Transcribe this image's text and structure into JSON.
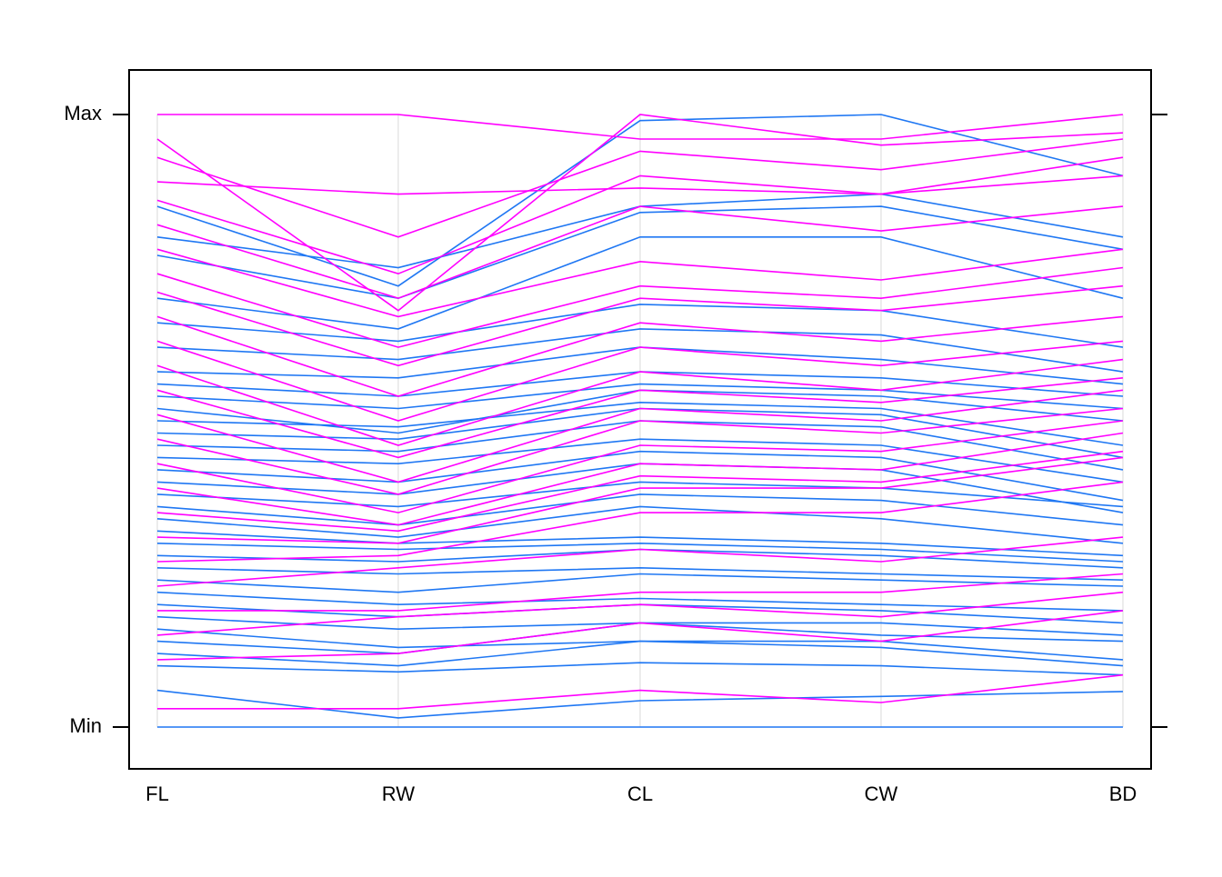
{
  "chart_data": {
    "type": "parallel_coordinates",
    "axes": [
      "FL",
      "RW",
      "CL",
      "CW",
      "BD"
    ],
    "y_tick_labels": {
      "min": "Min",
      "max": "Max"
    },
    "ylim": [
      0,
      1
    ],
    "grid": true,
    "colors": {
      "blue": "#1f77f3",
      "magenta": "#ff00ff",
      "grid": "#e6e6e6",
      "frame": "#000000"
    },
    "series": [
      {
        "group": "blue",
        "values": [
          0.0,
          0.0,
          0.0,
          0.0,
          0.0
        ]
      },
      {
        "group": "blue",
        "values": [
          0.06,
          0.015,
          0.043,
          0.05,
          0.058
        ]
      },
      {
        "group": "blue",
        "values": [
          0.1,
          0.09,
          0.105,
          0.1,
          0.085
        ]
      },
      {
        "group": "blue",
        "values": [
          0.12,
          0.1,
          0.14,
          0.14,
          0.11
        ]
      },
      {
        "group": "blue",
        "values": [
          0.14,
          0.12,
          0.17,
          0.15,
          0.14
        ]
      },
      {
        "group": "blue",
        "values": [
          0.16,
          0.13,
          0.14,
          0.13,
          0.1
        ]
      },
      {
        "group": "blue",
        "values": [
          0.18,
          0.16,
          0.17,
          0.17,
          0.15
        ]
      },
      {
        "group": "blue",
        "values": [
          0.2,
          0.18,
          0.2,
          0.19,
          0.17
        ]
      },
      {
        "group": "blue",
        "values": [
          0.22,
          0.2,
          0.21,
          0.2,
          0.19
        ]
      },
      {
        "group": "blue",
        "values": [
          0.24,
          0.22,
          0.25,
          0.24,
          0.23
        ]
      },
      {
        "group": "blue",
        "values": [
          0.26,
          0.25,
          0.26,
          0.25,
          0.24
        ]
      },
      {
        "group": "blue",
        "values": [
          0.28,
          0.27,
          0.29,
          0.28,
          0.26
        ]
      },
      {
        "group": "blue",
        "values": [
          0.3,
          0.29,
          0.3,
          0.29,
          0.27
        ]
      },
      {
        "group": "blue",
        "values": [
          0.32,
          0.3,
          0.31,
          0.3,
          0.28
        ]
      },
      {
        "group": "blue",
        "values": [
          0.34,
          0.31,
          0.36,
          0.34,
          0.3
        ]
      },
      {
        "group": "blue",
        "values": [
          0.36,
          0.33,
          0.38,
          0.37,
          0.33
        ]
      },
      {
        "group": "blue",
        "values": [
          0.38,
          0.36,
          0.4,
          0.39,
          0.36
        ]
      },
      {
        "group": "blue",
        "values": [
          0.4,
          0.38,
          0.43,
          0.42,
          0.35
        ]
      },
      {
        "group": "blue",
        "values": [
          0.42,
          0.4,
          0.45,
          0.44,
          0.37
        ]
      },
      {
        "group": "blue",
        "values": [
          0.44,
          0.43,
          0.47,
          0.46,
          0.4
        ]
      },
      {
        "group": "blue",
        "values": [
          0.46,
          0.45,
          0.5,
          0.49,
          0.42
        ]
      },
      {
        "group": "blue",
        "values": [
          0.48,
          0.47,
          0.52,
          0.51,
          0.44
        ]
      },
      {
        "group": "blue",
        "values": [
          0.5,
          0.49,
          0.53,
          0.52,
          0.46
        ]
      },
      {
        "group": "blue",
        "values": [
          0.52,
          0.48,
          0.55,
          0.54,
          0.5
        ]
      },
      {
        "group": "blue",
        "values": [
          0.54,
          0.52,
          0.56,
          0.55,
          0.52
        ]
      },
      {
        "group": "blue",
        "values": [
          0.56,
          0.54,
          0.58,
          0.57,
          0.54
        ]
      },
      {
        "group": "blue",
        "values": [
          0.58,
          0.57,
          0.62,
          0.6,
          0.56
        ]
      },
      {
        "group": "blue",
        "values": [
          0.62,
          0.6,
          0.65,
          0.64,
          0.58
        ]
      },
      {
        "group": "blue",
        "values": [
          0.66,
          0.63,
          0.69,
          0.68,
          0.62
        ]
      },
      {
        "group": "blue",
        "values": [
          0.7,
          0.65,
          0.8,
          0.8,
          0.7
        ]
      },
      {
        "group": "blue",
        "values": [
          0.77,
          0.7,
          0.84,
          0.85,
          0.78
        ]
      },
      {
        "group": "blue",
        "values": [
          0.8,
          0.75,
          0.85,
          0.87,
          0.8
        ]
      },
      {
        "group": "blue",
        "values": [
          0.85,
          0.72,
          0.99,
          1.0,
          0.9
        ]
      },
      {
        "group": "magenta",
        "values": [
          0.03,
          0.03,
          0.06,
          0.04,
          0.085
        ]
      },
      {
        "group": "magenta",
        "values": [
          0.11,
          0.12,
          0.17,
          0.14,
          0.19
        ]
      },
      {
        "group": "magenta",
        "values": [
          0.15,
          0.18,
          0.2,
          0.18,
          0.22
        ]
      },
      {
        "group": "magenta",
        "values": [
          0.19,
          0.19,
          0.22,
          0.22,
          0.25
        ]
      },
      {
        "group": "magenta",
        "values": [
          0.23,
          0.26,
          0.29,
          0.27,
          0.31
        ]
      },
      {
        "group": "magenta",
        "values": [
          0.27,
          0.28,
          0.35,
          0.35,
          0.4
        ]
      },
      {
        "group": "magenta",
        "values": [
          0.31,
          0.3,
          0.39,
          0.39,
          0.44
        ]
      },
      {
        "group": "magenta",
        "values": [
          0.35,
          0.32,
          0.41,
          0.4,
          0.45
        ]
      },
      {
        "group": "magenta",
        "values": [
          0.39,
          0.33,
          0.43,
          0.42,
          0.48
        ]
      },
      {
        "group": "magenta",
        "values": [
          0.43,
          0.35,
          0.46,
          0.45,
          0.5
        ]
      },
      {
        "group": "magenta",
        "values": [
          0.47,
          0.38,
          0.5,
          0.48,
          0.52
        ]
      },
      {
        "group": "magenta",
        "values": [
          0.51,
          0.4,
          0.52,
          0.5,
          0.55
        ]
      },
      {
        "group": "magenta",
        "values": [
          0.55,
          0.44,
          0.55,
          0.53,
          0.57
        ]
      },
      {
        "group": "magenta",
        "values": [
          0.59,
          0.46,
          0.58,
          0.55,
          0.6
        ]
      },
      {
        "group": "magenta",
        "values": [
          0.63,
          0.5,
          0.62,
          0.59,
          0.63
        ]
      },
      {
        "group": "magenta",
        "values": [
          0.67,
          0.54,
          0.66,
          0.63,
          0.67
        ]
      },
      {
        "group": "magenta",
        "values": [
          0.71,
          0.59,
          0.7,
          0.68,
          0.72
        ]
      },
      {
        "group": "magenta",
        "values": [
          0.74,
          0.62,
          0.72,
          0.7,
          0.75
        ]
      },
      {
        "group": "magenta",
        "values": [
          0.78,
          0.67,
          0.76,
          0.73,
          0.78
        ]
      },
      {
        "group": "magenta",
        "values": [
          0.82,
          0.7,
          0.85,
          0.81,
          0.85
        ]
      },
      {
        "group": "magenta",
        "values": [
          0.86,
          0.74,
          0.9,
          0.87,
          0.9
        ]
      },
      {
        "group": "magenta",
        "values": [
          0.89,
          0.87,
          0.88,
          0.87,
          0.93
        ]
      },
      {
        "group": "magenta",
        "values": [
          0.93,
          0.8,
          0.94,
          0.91,
          0.96
        ]
      },
      {
        "group": "magenta",
        "values": [
          0.96,
          0.68,
          1.0,
          0.95,
          0.97
        ]
      },
      {
        "group": "magenta",
        "values": [
          1.0,
          1.0,
          0.96,
          0.96,
          1.0
        ]
      }
    ]
  }
}
